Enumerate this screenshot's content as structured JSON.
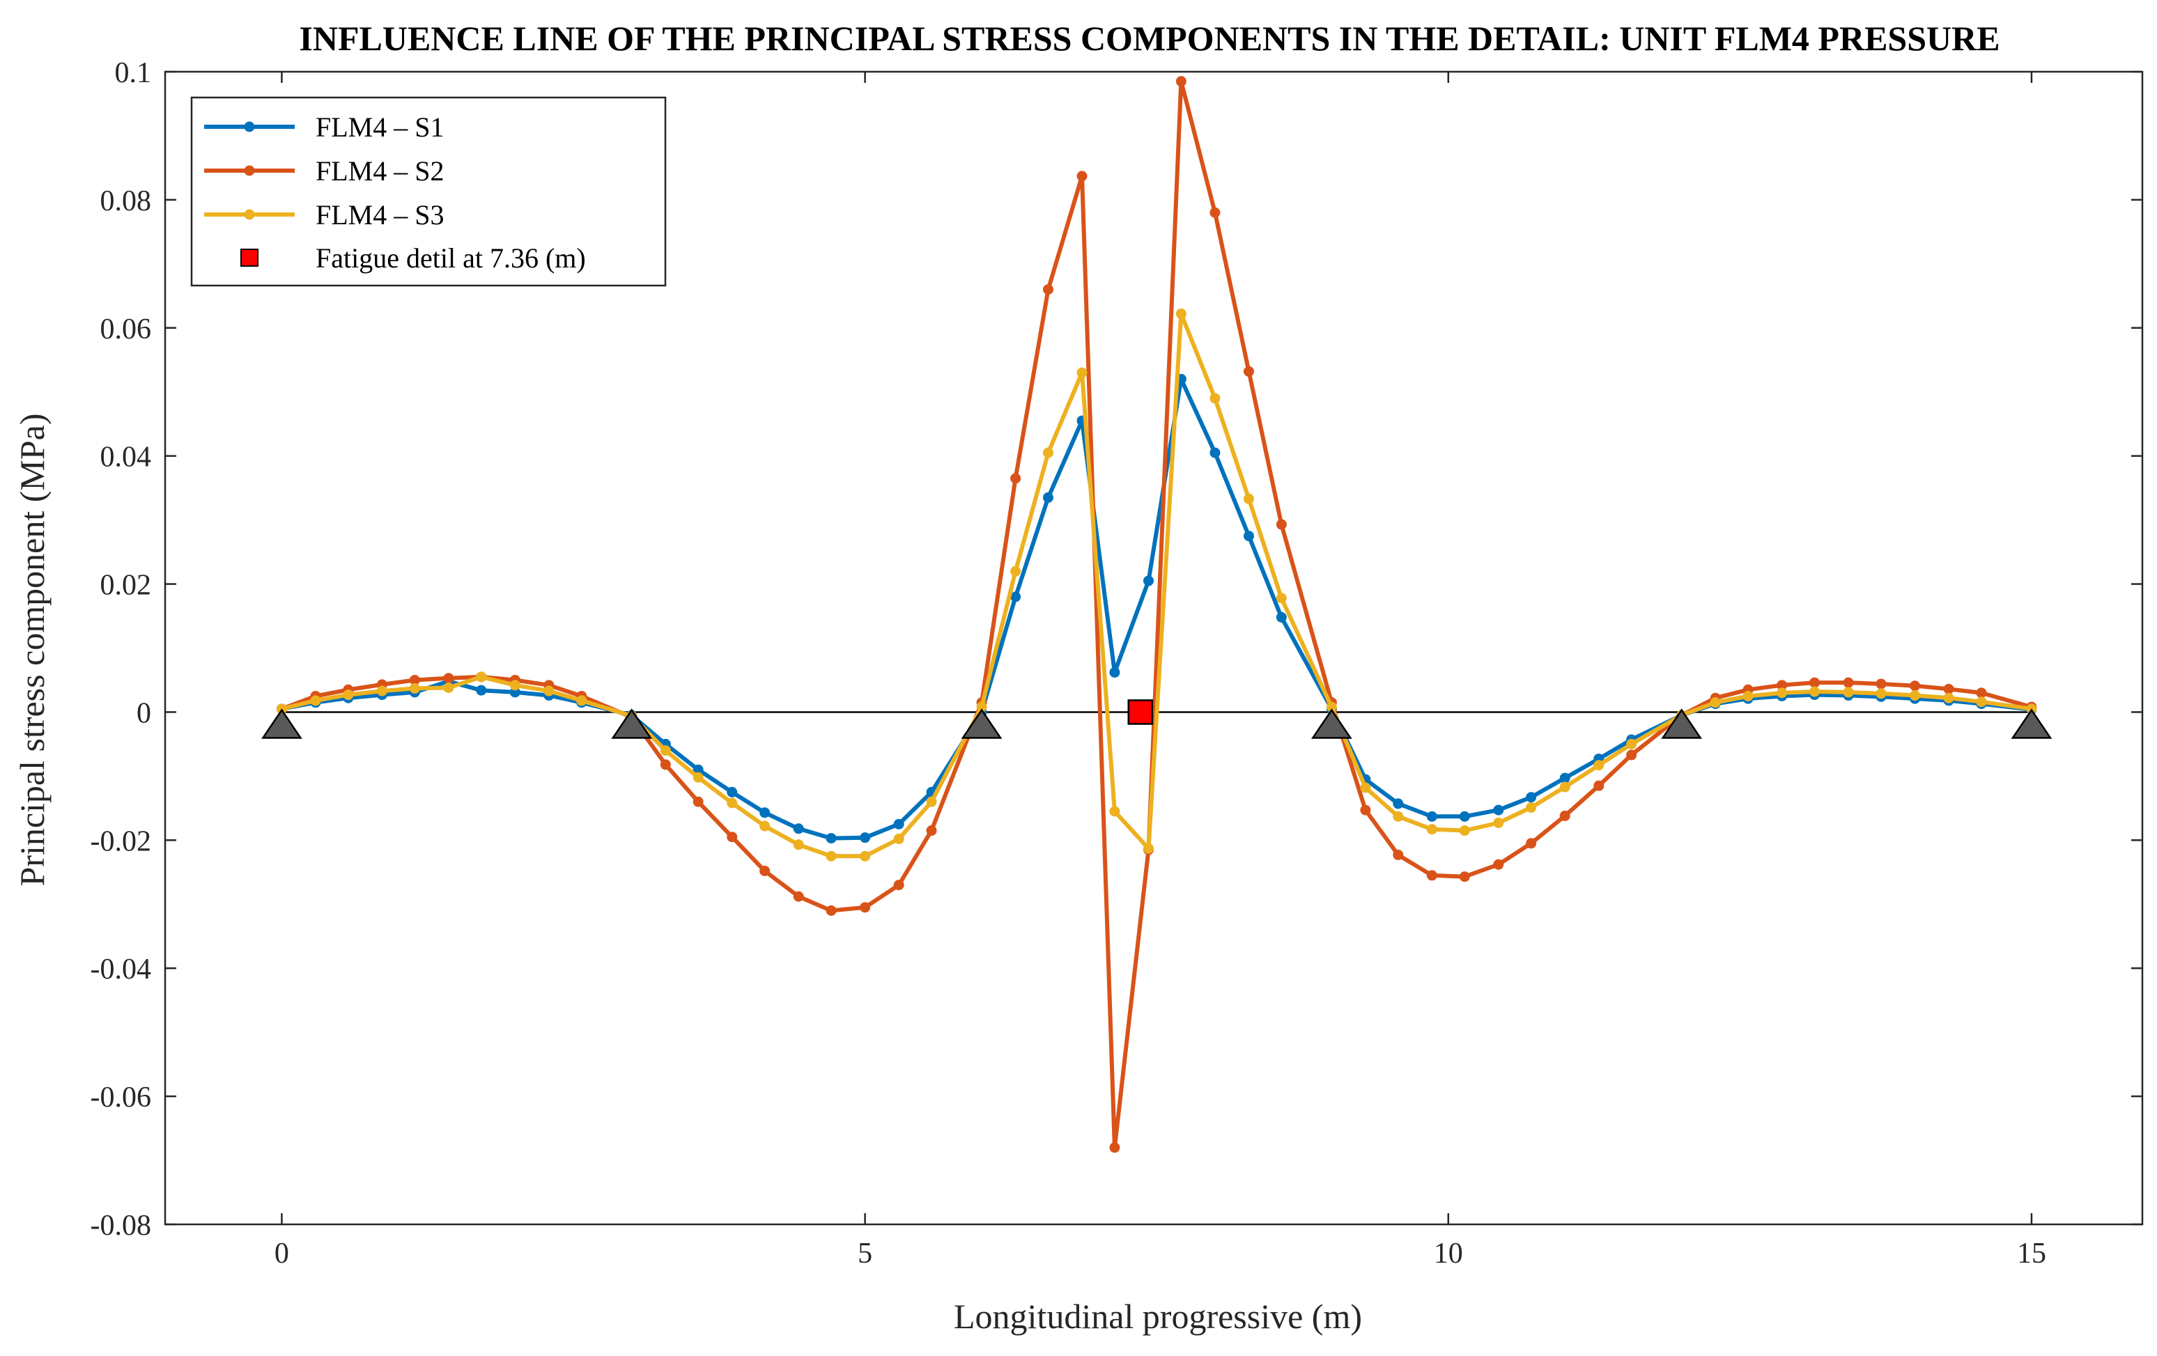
{
  "chart_data": {
    "type": "line",
    "title": "INFLUENCE LINE OF THE PRINCIPAL STRESS COMPONENTS IN THE DETAIL: UNIT FLM4 PRESSURE",
    "xlabel": "Longitudinal progressive (m)",
    "ylabel": "Principal stress component (MPa)",
    "xlim": [
      -1,
      15.95
    ],
    "ylim": [
      -0.08,
      0.1
    ],
    "xticks": [
      0,
      5,
      10,
      15
    ],
    "xtick_labels": [
      "0",
      "5",
      "10",
      "15"
    ],
    "yticks": [
      -0.08,
      -0.06,
      -0.04,
      -0.02,
      0,
      0.02,
      0.04,
      0.06,
      0.08,
      0.1
    ],
    "ytick_labels": [
      "-0.08",
      "-0.06",
      "-0.04",
      "-0.02",
      "0",
      "0.02",
      "0.04",
      "0.06",
      "0.08",
      "0.1"
    ],
    "grid": false,
    "legend_position": "top-left",
    "series": [
      {
        "name": "FLM4 – S1",
        "color": "#0072BD",
        "x": [
          0,
          0.29,
          0.57,
          0.86,
          1.14,
          1.43,
          1.71,
          2.0,
          2.29,
          2.57,
          3.0,
          3.29,
          3.57,
          3.86,
          4.14,
          4.43,
          4.71,
          5.0,
          5.29,
          5.57,
          6.0,
          6.29,
          6.57,
          6.86,
          7.14,
          7.43,
          7.71,
          8.0,
          8.29,
          8.57,
          9.0,
          9.29,
          9.57,
          9.86,
          10.14,
          10.43,
          10.71,
          11.0,
          11.29,
          11.57,
          12.0,
          12.29,
          12.57,
          12.86,
          13.14,
          13.43,
          13.71,
          14.0,
          14.29,
          14.57,
          15.0
        ],
        "y": [
          0.0005,
          0.0015,
          0.0022,
          0.0027,
          0.0031,
          0.0048,
          0.0034,
          0.0031,
          0.0026,
          0.0015,
          -0.0005,
          -0.005,
          -0.009,
          -0.0125,
          -0.0157,
          -0.0182,
          -0.0197,
          -0.0196,
          -0.0175,
          -0.0125,
          0.0,
          0.018,
          0.0335,
          0.0455,
          0.0062,
          0.0205,
          0.052,
          0.0405,
          0.0275,
          0.0148,
          0.0005,
          -0.0105,
          -0.0143,
          -0.0163,
          -0.0163,
          -0.0153,
          -0.0133,
          -0.0103,
          -0.0073,
          -0.0043,
          -0.0005,
          0.0013,
          0.0021,
          0.0025,
          0.0027,
          0.0026,
          0.0024,
          0.0021,
          0.0018,
          0.0013,
          0.0004
        ]
      },
      {
        "name": "FLM4 – S2",
        "color": "#D95319",
        "x": [
          0,
          0.29,
          0.57,
          0.86,
          1.14,
          1.43,
          1.71,
          2.0,
          2.29,
          2.57,
          3.0,
          3.29,
          3.57,
          3.86,
          4.14,
          4.43,
          4.71,
          5.0,
          5.29,
          5.57,
          6.0,
          6.29,
          6.57,
          6.86,
          7.14,
          7.43,
          7.71,
          8.0,
          8.29,
          8.57,
          9.0,
          9.29,
          9.57,
          9.86,
          10.14,
          10.43,
          10.71,
          11.0,
          11.29,
          11.57,
          12.0,
          12.29,
          12.57,
          12.86,
          13.14,
          13.43,
          13.71,
          14.0,
          14.29,
          14.57,
          15.0
        ],
        "y": [
          0.0005,
          0.0025,
          0.0035,
          0.0043,
          0.005,
          0.0053,
          0.0055,
          0.005,
          0.0042,
          0.0025,
          -0.0008,
          -0.0082,
          -0.014,
          -0.0195,
          -0.0248,
          -0.0288,
          -0.031,
          -0.0305,
          -0.027,
          -0.0185,
          0.0015,
          0.0365,
          0.066,
          0.0837,
          -0.068,
          -0.0215,
          0.0985,
          0.078,
          0.0532,
          0.0293,
          0.0015,
          -0.0153,
          -0.0223,
          -0.0255,
          -0.0257,
          -0.0238,
          -0.0205,
          -0.0162,
          -0.0115,
          -0.0067,
          -0.0005,
          0.0022,
          0.0035,
          0.0042,
          0.0046,
          0.0046,
          0.0044,
          0.0041,
          0.0036,
          0.003,
          0.0008
        ]
      },
      {
        "name": "FLM4 – S3",
        "color": "#EDB120",
        "x": [
          0,
          0.29,
          0.57,
          0.86,
          1.14,
          1.43,
          1.71,
          2.0,
          2.29,
          2.57,
          3.0,
          3.29,
          3.57,
          3.86,
          4.14,
          4.43,
          4.71,
          5.0,
          5.29,
          5.57,
          6.0,
          6.29,
          6.57,
          6.86,
          7.14,
          7.43,
          7.71,
          8.0,
          8.29,
          8.57,
          9.0,
          9.29,
          9.57,
          9.86,
          10.14,
          10.43,
          10.71,
          11.0,
          11.29,
          11.57,
          12.0,
          12.29,
          12.57,
          12.86,
          13.14,
          13.43,
          13.71,
          14.0,
          14.29,
          14.57,
          15.0
        ],
        "y": [
          0.0005,
          0.0018,
          0.0027,
          0.0033,
          0.0037,
          0.0038,
          0.0055,
          0.0042,
          0.0033,
          0.0018,
          -0.0006,
          -0.006,
          -0.0102,
          -0.0142,
          -0.0178,
          -0.0207,
          -0.0225,
          -0.0225,
          -0.0198,
          -0.014,
          0.0008,
          0.022,
          0.0405,
          0.053,
          -0.0155,
          -0.0213,
          0.0622,
          0.049,
          0.0333,
          0.0178,
          0.0008,
          -0.0118,
          -0.0163,
          -0.0183,
          -0.0185,
          -0.0173,
          -0.0149,
          -0.0117,
          -0.0083,
          -0.005,
          -0.0005,
          0.0015,
          0.0025,
          0.003,
          0.0032,
          0.0031,
          0.0029,
          0.0026,
          0.0022,
          0.0016,
          0.0005
        ]
      }
    ],
    "supports": {
      "color": "#595959",
      "x": [
        0,
        3,
        6,
        9,
        12,
        15
      ]
    },
    "fatigue_detail": {
      "name": "Fatigue detil at 7.36 (m)",
      "color": "#FF0000",
      "x": 7.36,
      "y": 0
    }
  }
}
